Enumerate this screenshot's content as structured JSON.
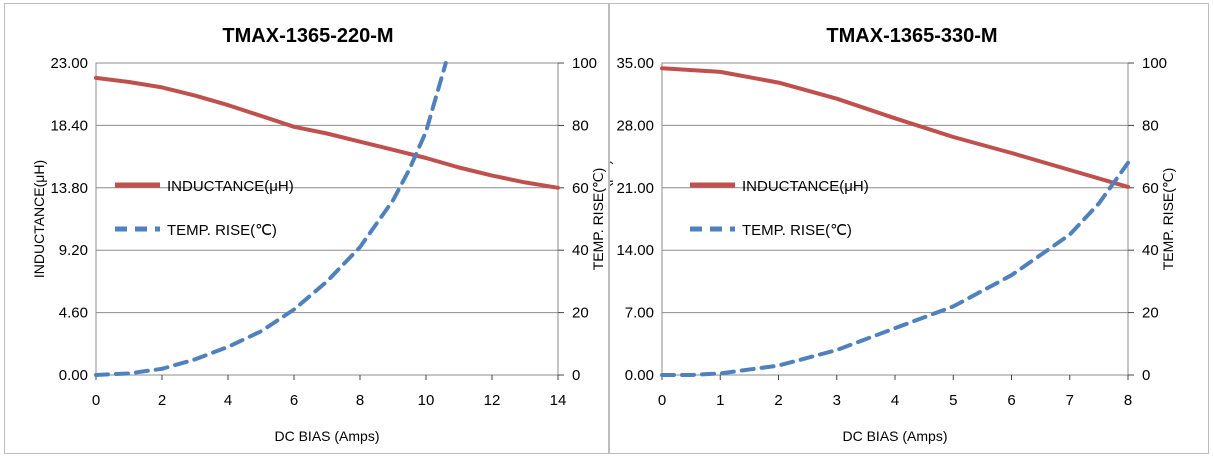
{
  "colors": {
    "inductance": "#c0504d",
    "temp": "#4f81bd",
    "grid": "#8c8c8c"
  },
  "chart_data": [
    {
      "type": "line",
      "title": "TMAX-1365-220-M",
      "xlabel": "DC BIAS  (Amps)",
      "ylabel_left": "INDUCTANCE(μH)",
      "ylabel_right": "TEMP. RISE(℃)",
      "x_ticks": [
        "0",
        "2",
        "4",
        "6",
        "8",
        "10",
        "12",
        "14"
      ],
      "y_left_ticks": [
        "0.00",
        "4.60",
        "9.20",
        "13.80",
        "18.40",
        "23.00"
      ],
      "y_right_ticks": [
        "0",
        "20",
        "40",
        "60",
        "80",
        "100"
      ],
      "xlim": [
        0,
        14
      ],
      "ylim_left": [
        0,
        23
      ],
      "ylim_right": [
        0,
        100
      ],
      "legend": [
        "INDUCTANCE(μH)",
        "TEMP. RISE(℃)"
      ],
      "series": [
        {
          "name": "INDUCTANCE(μH)",
          "axis": "left",
          "x": [
            0,
            1,
            2,
            3,
            4,
            5,
            6,
            7,
            8,
            9,
            10,
            11,
            12,
            13,
            14
          ],
          "y": [
            21.9,
            21.6,
            21.2,
            20.6,
            19.9,
            19.1,
            18.3,
            17.8,
            17.2,
            16.6,
            16.0,
            15.3,
            14.7,
            14.2,
            13.8
          ]
        },
        {
          "name": "TEMP. RISE(℃)",
          "axis": "right",
          "x": [
            0,
            1,
            2,
            3,
            4,
            5,
            6,
            7,
            8,
            9,
            9.5,
            10,
            10.6
          ],
          "y": [
            0,
            0.5,
            2,
            5,
            9,
            14,
            21,
            30,
            41,
            56,
            66,
            78,
            100
          ]
        }
      ]
    },
    {
      "type": "line",
      "title": "TMAX-1365-330-M",
      "xlabel": "DC BIAS  (Amps)",
      "ylabel_left": "INDUCTANCE(μH)",
      "ylabel_right": "TEMP. RISE(℃)",
      "x_ticks": [
        "0",
        "1",
        "2",
        "3",
        "4",
        "5",
        "6",
        "7",
        "8"
      ],
      "y_left_ticks": [
        "0.00",
        "7.00",
        "14.00",
        "21.00",
        "28.00",
        "35.00"
      ],
      "y_right_ticks": [
        "0",
        "20",
        "40",
        "60",
        "80",
        "100"
      ],
      "xlim": [
        0,
        8
      ],
      "ylim_left": [
        0,
        35
      ],
      "ylim_right": [
        0,
        100
      ],
      "legend": [
        "INDUCTANCE(μH)",
        "TEMP. RISE(℃)"
      ],
      "series": [
        {
          "name": "INDUCTANCE(μH)",
          "axis": "left",
          "x": [
            0,
            1,
            2,
            3,
            4,
            5,
            6,
            7,
            8
          ],
          "y": [
            34.4,
            34.0,
            32.8,
            31.0,
            28.8,
            26.7,
            24.9,
            23.0,
            21.1
          ]
        },
        {
          "name": "TEMP. RISE(℃)",
          "axis": "right",
          "x": [
            0,
            0.5,
            1,
            2,
            3,
            4,
            5,
            6,
            7,
            7.5,
            8
          ],
          "y": [
            0,
            0,
            0.5,
            3,
            8,
            15,
            22,
            32,
            45,
            55,
            68
          ]
        }
      ]
    }
  ]
}
